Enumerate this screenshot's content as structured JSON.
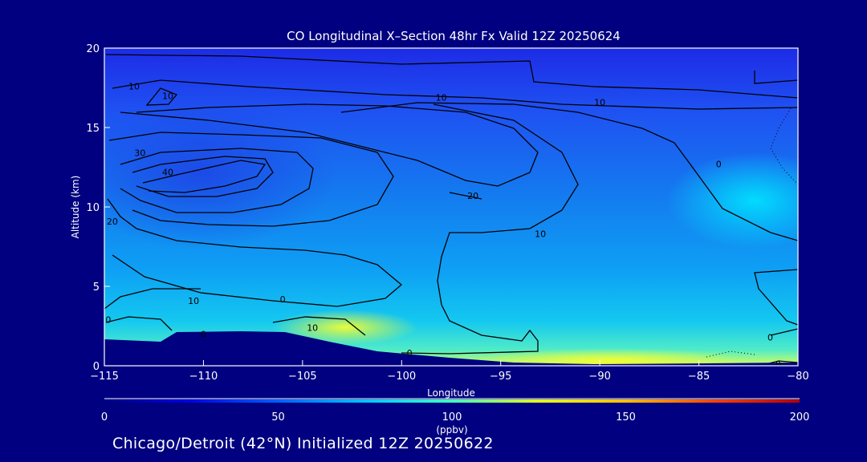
{
  "chart_data": {
    "type": "heatmap",
    "title": "CO Longitudinal X–Section 48hr  Fx Valid 12Z 20250624",
    "xlabel": "Longitude",
    "ylabel": "Altitude (km)",
    "xlim": [
      -115,
      -80
    ],
    "ylim": [
      0,
      20
    ],
    "x_ticks": [
      -115,
      -110,
      -105,
      -100,
      -95,
      -90,
      -85,
      -80
    ],
    "x_tick_labels": [
      "−115",
      "−110",
      "−105",
      "−100",
      "−95",
      "−90",
      "−85",
      "−80"
    ],
    "y_ticks": [
      0,
      5,
      10,
      15,
      20
    ],
    "y_tick_labels": [
      "0",
      "5",
      "10",
      "15",
      "20"
    ],
    "colorbar": {
      "min": 0,
      "max": 200,
      "ticks": [
        0,
        50,
        100,
        150,
        200
      ],
      "tick_labels": [
        "0",
        "50",
        "100",
        "150",
        "200"
      ],
      "unit": "(ppbv)",
      "colors": [
        "#000080",
        "#0000e0",
        "#0060ff",
        "#00c8ff",
        "#40ffc0",
        "#e0ff20",
        "#ffc000",
        "#ff4000",
        "#b00000"
      ]
    },
    "field_points": [
      {
        "x": -114,
        "y": 18,
        "v": 48
      },
      {
        "x": -95,
        "y": 18,
        "v": 47
      },
      {
        "x": -82,
        "y": 18,
        "v": 44
      },
      {
        "x": -108,
        "y": 12,
        "v": 55
      },
      {
        "x": -100,
        "y": 11,
        "v": 62
      },
      {
        "x": -84,
        "y": 10,
        "v": 78
      },
      {
        "x": -105,
        "y": 6,
        "v": 70
      },
      {
        "x": -88,
        "y": 5,
        "v": 72
      },
      {
        "x": -100,
        "y": 2,
        "v": 85
      },
      {
        "x": -87,
        "y": 0.6,
        "v": 100
      }
    ],
    "contour_labels": [
      {
        "x": -113.5,
        "y": 17.6,
        "text": "10"
      },
      {
        "x": -111.8,
        "y": 17.0,
        "text": "10"
      },
      {
        "x": -106.0,
        "y": 4.2,
        "text": "0"
      },
      {
        "x": -113.2,
        "y": 13.4,
        "text": "30"
      },
      {
        "x": -111.8,
        "y": 12.2,
        "text": "40"
      },
      {
        "x": -114.6,
        "y": 9.1,
        "text": "20"
      },
      {
        "x": -110.5,
        "y": 4.1,
        "text": "10"
      },
      {
        "x": -114.8,
        "y": 2.9,
        "text": "0"
      },
      {
        "x": -110.0,
        "y": 2.0,
        "text": "0"
      },
      {
        "x": -104.5,
        "y": 2.4,
        "text": "10"
      },
      {
        "x": -99.6,
        "y": 0.8,
        "text": "0"
      },
      {
        "x": -96.4,
        "y": 10.7,
        "text": "20"
      },
      {
        "x": -93.0,
        "y": 8.3,
        "text": "10"
      },
      {
        "x": -98.0,
        "y": 16.9,
        "text": "10"
      },
      {
        "x": -90.0,
        "y": 16.6,
        "text": "10"
      },
      {
        "x": -84.0,
        "y": 12.7,
        "text": "0"
      },
      {
        "x": -81.4,
        "y": 1.8,
        "text": "0"
      },
      {
        "x": -81.0,
        "y": 0.1,
        "text": "0"
      }
    ]
  },
  "footer_text": "Chicago/Detroit (42°N) Initialized 12Z 20250622",
  "colors": {
    "background": "#000080",
    "frame": "#ffffff",
    "contour": "#000000",
    "terrain": "#000080",
    "colorbar_line": "#a00000"
  }
}
